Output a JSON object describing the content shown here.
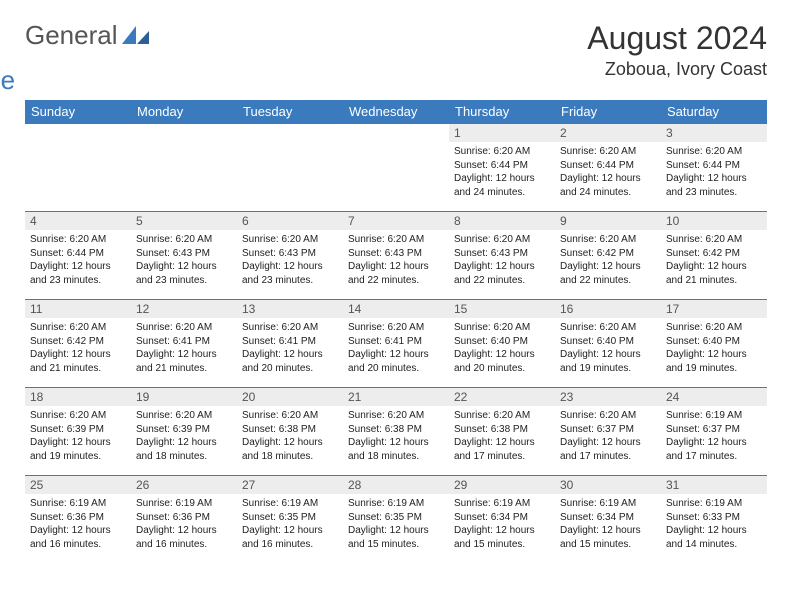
{
  "brand": {
    "part1": "General",
    "part2": "Blue",
    "iconColor": "#3a7abd"
  },
  "title": "August 2024",
  "location": "Zoboua, Ivory Coast",
  "colors": {
    "headerBg": "#3a7abd",
    "headerText": "#ffffff",
    "dayNumBg": "#ededed",
    "dayNumText": "#555555",
    "bodyText": "#222222",
    "rowBorder": "#3a7abd"
  },
  "weekdays": [
    "Sunday",
    "Monday",
    "Tuesday",
    "Wednesday",
    "Thursday",
    "Friday",
    "Saturday"
  ],
  "weeks": [
    [
      {
        "n": "",
        "t": ""
      },
      {
        "n": "",
        "t": ""
      },
      {
        "n": "",
        "t": ""
      },
      {
        "n": "",
        "t": ""
      },
      {
        "n": "1",
        "t": "Sunrise: 6:20 AM\nSunset: 6:44 PM\nDaylight: 12 hours and 24 minutes."
      },
      {
        "n": "2",
        "t": "Sunrise: 6:20 AM\nSunset: 6:44 PM\nDaylight: 12 hours and 24 minutes."
      },
      {
        "n": "3",
        "t": "Sunrise: 6:20 AM\nSunset: 6:44 PM\nDaylight: 12 hours and 23 minutes."
      }
    ],
    [
      {
        "n": "4",
        "t": "Sunrise: 6:20 AM\nSunset: 6:44 PM\nDaylight: 12 hours and 23 minutes."
      },
      {
        "n": "5",
        "t": "Sunrise: 6:20 AM\nSunset: 6:43 PM\nDaylight: 12 hours and 23 minutes."
      },
      {
        "n": "6",
        "t": "Sunrise: 6:20 AM\nSunset: 6:43 PM\nDaylight: 12 hours and 23 minutes."
      },
      {
        "n": "7",
        "t": "Sunrise: 6:20 AM\nSunset: 6:43 PM\nDaylight: 12 hours and 22 minutes."
      },
      {
        "n": "8",
        "t": "Sunrise: 6:20 AM\nSunset: 6:43 PM\nDaylight: 12 hours and 22 minutes."
      },
      {
        "n": "9",
        "t": "Sunrise: 6:20 AM\nSunset: 6:42 PM\nDaylight: 12 hours and 22 minutes."
      },
      {
        "n": "10",
        "t": "Sunrise: 6:20 AM\nSunset: 6:42 PM\nDaylight: 12 hours and 21 minutes."
      }
    ],
    [
      {
        "n": "11",
        "t": "Sunrise: 6:20 AM\nSunset: 6:42 PM\nDaylight: 12 hours and 21 minutes."
      },
      {
        "n": "12",
        "t": "Sunrise: 6:20 AM\nSunset: 6:41 PM\nDaylight: 12 hours and 21 minutes."
      },
      {
        "n": "13",
        "t": "Sunrise: 6:20 AM\nSunset: 6:41 PM\nDaylight: 12 hours and 20 minutes."
      },
      {
        "n": "14",
        "t": "Sunrise: 6:20 AM\nSunset: 6:41 PM\nDaylight: 12 hours and 20 minutes."
      },
      {
        "n": "15",
        "t": "Sunrise: 6:20 AM\nSunset: 6:40 PM\nDaylight: 12 hours and 20 minutes."
      },
      {
        "n": "16",
        "t": "Sunrise: 6:20 AM\nSunset: 6:40 PM\nDaylight: 12 hours and 19 minutes."
      },
      {
        "n": "17",
        "t": "Sunrise: 6:20 AM\nSunset: 6:40 PM\nDaylight: 12 hours and 19 minutes."
      }
    ],
    [
      {
        "n": "18",
        "t": "Sunrise: 6:20 AM\nSunset: 6:39 PM\nDaylight: 12 hours and 19 minutes."
      },
      {
        "n": "19",
        "t": "Sunrise: 6:20 AM\nSunset: 6:39 PM\nDaylight: 12 hours and 18 minutes."
      },
      {
        "n": "20",
        "t": "Sunrise: 6:20 AM\nSunset: 6:38 PM\nDaylight: 12 hours and 18 minutes."
      },
      {
        "n": "21",
        "t": "Sunrise: 6:20 AM\nSunset: 6:38 PM\nDaylight: 12 hours and 18 minutes."
      },
      {
        "n": "22",
        "t": "Sunrise: 6:20 AM\nSunset: 6:38 PM\nDaylight: 12 hours and 17 minutes."
      },
      {
        "n": "23",
        "t": "Sunrise: 6:20 AM\nSunset: 6:37 PM\nDaylight: 12 hours and 17 minutes."
      },
      {
        "n": "24",
        "t": "Sunrise: 6:19 AM\nSunset: 6:37 PM\nDaylight: 12 hours and 17 minutes."
      }
    ],
    [
      {
        "n": "25",
        "t": "Sunrise: 6:19 AM\nSunset: 6:36 PM\nDaylight: 12 hours and 16 minutes."
      },
      {
        "n": "26",
        "t": "Sunrise: 6:19 AM\nSunset: 6:36 PM\nDaylight: 12 hours and 16 minutes."
      },
      {
        "n": "27",
        "t": "Sunrise: 6:19 AM\nSunset: 6:35 PM\nDaylight: 12 hours and 16 minutes."
      },
      {
        "n": "28",
        "t": "Sunrise: 6:19 AM\nSunset: 6:35 PM\nDaylight: 12 hours and 15 minutes."
      },
      {
        "n": "29",
        "t": "Sunrise: 6:19 AM\nSunset: 6:34 PM\nDaylight: 12 hours and 15 minutes."
      },
      {
        "n": "30",
        "t": "Sunrise: 6:19 AM\nSunset: 6:34 PM\nDaylight: 12 hours and 15 minutes."
      },
      {
        "n": "31",
        "t": "Sunrise: 6:19 AM\nSunset: 6:33 PM\nDaylight: 12 hours and 14 minutes."
      }
    ]
  ]
}
